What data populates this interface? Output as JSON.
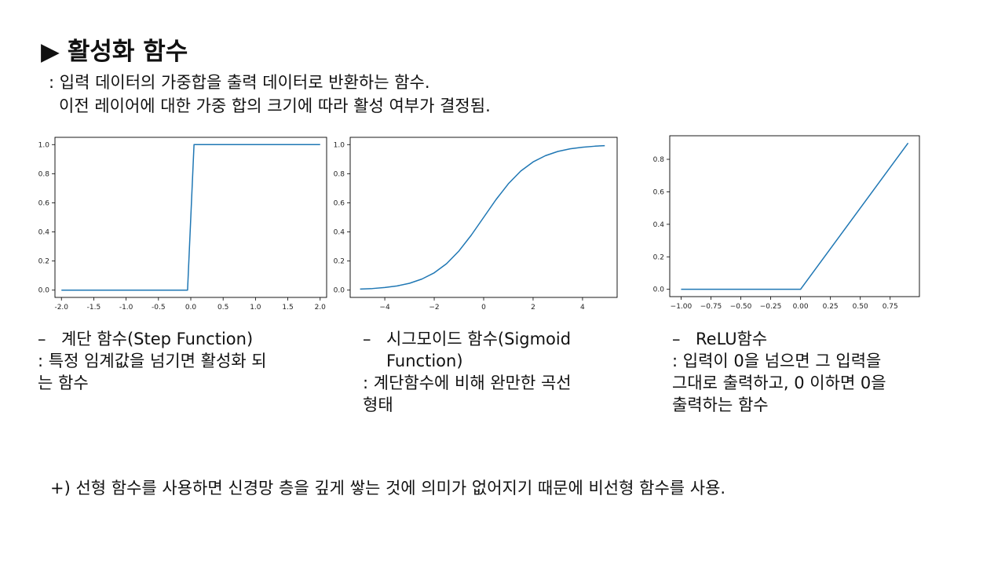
{
  "title": {
    "marker": "▶",
    "text": "활성화 함수"
  },
  "intro": {
    "line1": ": 입력 데이터의 가중합을 출력 데이터로 반환하는 함수.",
    "line2": "이전 레이어에 대한 가중 합의 크기에 따라 활성 여부가 결정됨."
  },
  "charts": [
    {
      "name": "step",
      "heading": "계단 함수(Step Function)",
      "desc_lines": [
        ": 특정 임계값을 넘기면 활성화 되",
        "는 함수"
      ]
    },
    {
      "name": "sigmoid",
      "heading_lines": [
        "시그모이드 함수(Sigmoid",
        "Function)"
      ],
      "desc_lines": [
        ": 계단함수에 비해 완만한 곡선",
        "형태"
      ]
    },
    {
      "name": "relu",
      "heading": "ReLU함수",
      "desc_lines": [
        ": 입력이 0을 넘으면 그 입력을",
        "그대로 출력하고, 0 이하면 0을",
        "출력하는 함수"
      ]
    }
  ],
  "dash": "–",
  "note": "+) 선형 함수를 사용하면 신경망 층을 깊게 쌓는 것에 의미가 없어지기 때문에 비선형 함수를 사용.",
  "colors": {
    "line": "#1f77b4"
  },
  "chart_data": [
    {
      "type": "line",
      "xlim": [
        -2.1,
        2.1
      ],
      "ylim": [
        -0.05,
        1.05
      ],
      "xticks": [
        "-2.0",
        "-1.5",
        "-1.0",
        "-0.5",
        "0.0",
        "0.5",
        "1.0",
        "1.5",
        "2.0"
      ],
      "xtick_values": [
        -2.0,
        -1.5,
        -1.0,
        -0.5,
        0.0,
        0.5,
        1.0,
        1.5,
        2.0
      ],
      "yticks": [
        "0.0",
        "0.2",
        "0.4",
        "0.6",
        "0.8",
        "1.0"
      ],
      "ytick_values": [
        0.0,
        0.2,
        0.4,
        0.6,
        0.8,
        1.0
      ],
      "series": [
        {
          "x": [
            -2.0,
            -0.05,
            0.05,
            2.0
          ],
          "y": [
            0,
            0,
            1,
            1
          ]
        }
      ],
      "grid": false
    },
    {
      "type": "line",
      "xlim": [
        -5.4,
        5.4
      ],
      "ylim": [
        -0.05,
        1.05
      ],
      "xticks": [
        "−4",
        "−2",
        "0",
        "2",
        "4"
      ],
      "xtick_values": [
        -4,
        -2,
        0,
        2,
        4
      ],
      "yticks": [
        "0.0",
        "0.2",
        "0.4",
        "0.6",
        "0.8",
        "1.0"
      ],
      "ytick_values": [
        0.0,
        0.2,
        0.4,
        0.6,
        0.8,
        1.0
      ],
      "series": [
        {
          "x": [
            -5.0,
            -4.5,
            -4.0,
            -3.5,
            -3.0,
            -2.5,
            -2.0,
            -1.5,
            -1.0,
            -0.5,
            0.0,
            0.5,
            1.0,
            1.5,
            2.0,
            2.5,
            3.0,
            3.5,
            4.0,
            4.5,
            4.9
          ],
          "y": [
            0.007,
            0.011,
            0.018,
            0.029,
            0.047,
            0.076,
            0.119,
            0.182,
            0.269,
            0.378,
            0.5,
            0.622,
            0.731,
            0.818,
            0.881,
            0.924,
            0.953,
            0.971,
            0.982,
            0.989,
            0.993
          ]
        }
      ],
      "grid": false
    },
    {
      "type": "line",
      "xlim": [
        -1.095,
        0.995
      ],
      "ylim": [
        -0.045,
        0.945
      ],
      "xticks": [
        "−1.00",
        "−0.75",
        "−0.50",
        "−0.25",
        "0.00",
        "0.25",
        "0.50",
        "0.75"
      ],
      "xtick_values": [
        -1.0,
        -0.75,
        -0.5,
        -0.25,
        0.0,
        0.25,
        0.5,
        0.75
      ],
      "yticks": [
        "0.0",
        "0.2",
        "0.4",
        "0.6",
        "0.8"
      ],
      "ytick_values": [
        0.0,
        0.2,
        0.4,
        0.6,
        0.8
      ],
      "series": [
        {
          "x": [
            -1.0,
            0.0,
            0.9
          ],
          "y": [
            0,
            0,
            0.9
          ]
        }
      ],
      "grid": false
    }
  ]
}
